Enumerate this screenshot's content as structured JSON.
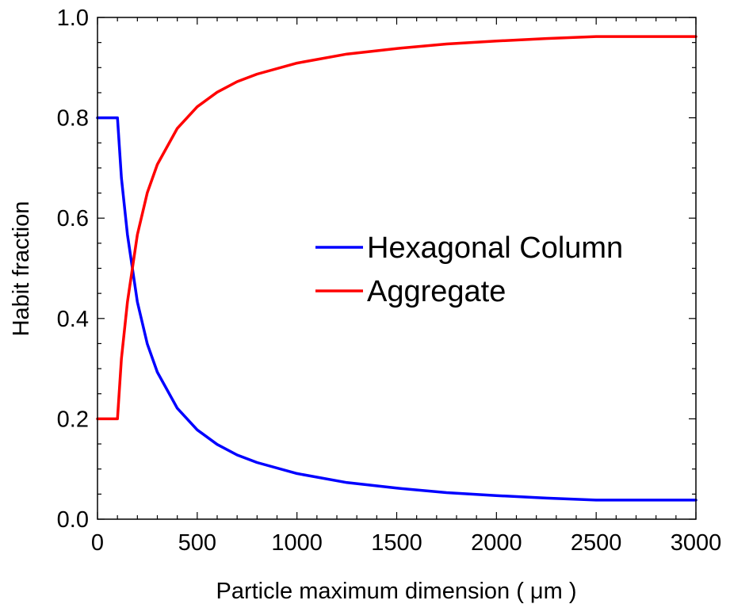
{
  "chart_data": {
    "type": "line",
    "title": "",
    "xlabel": "Particle maximum dimension ( μm )",
    "ylabel": "Habit fraction",
    "xlim": [
      0,
      3000
    ],
    "ylim": [
      0.0,
      1.0
    ],
    "x_ticks": [
      "0",
      "500",
      "1000",
      "1500",
      "2000",
      "2500",
      "3000"
    ],
    "y_ticks": [
      "0.0",
      "0.2",
      "0.4",
      "0.6",
      "0.8",
      "1.0"
    ],
    "grid": false,
    "legend_position": "center-right",
    "series": [
      {
        "name": "Hexagonal Column",
        "color": "#0000ff",
        "x": [
          0,
          100,
          120,
          150,
          200,
          250,
          300,
          400,
          500,
          600,
          700,
          800,
          1000,
          1250,
          1500,
          1750,
          2000,
          2250,
          2500,
          3000
        ],
        "y": [
          0.8,
          0.8,
          0.68,
          0.567,
          0.433,
          0.349,
          0.293,
          0.221,
          0.178,
          0.149,
          0.128,
          0.113,
          0.091,
          0.073,
          0.062,
          0.053,
          0.047,
          0.042,
          0.038,
          0.038
        ]
      },
      {
        "name": "Aggregate",
        "color": "#ff0000",
        "x": [
          0,
          100,
          120,
          150,
          200,
          250,
          300,
          400,
          500,
          600,
          700,
          800,
          1000,
          1250,
          1500,
          1750,
          2000,
          2250,
          2500,
          3000
        ],
        "y": [
          0.2,
          0.2,
          0.32,
          0.433,
          0.567,
          0.651,
          0.707,
          0.779,
          0.822,
          0.851,
          0.872,
          0.887,
          0.909,
          0.927,
          0.938,
          0.947,
          0.953,
          0.958,
          0.962,
          0.962
        ]
      }
    ]
  }
}
